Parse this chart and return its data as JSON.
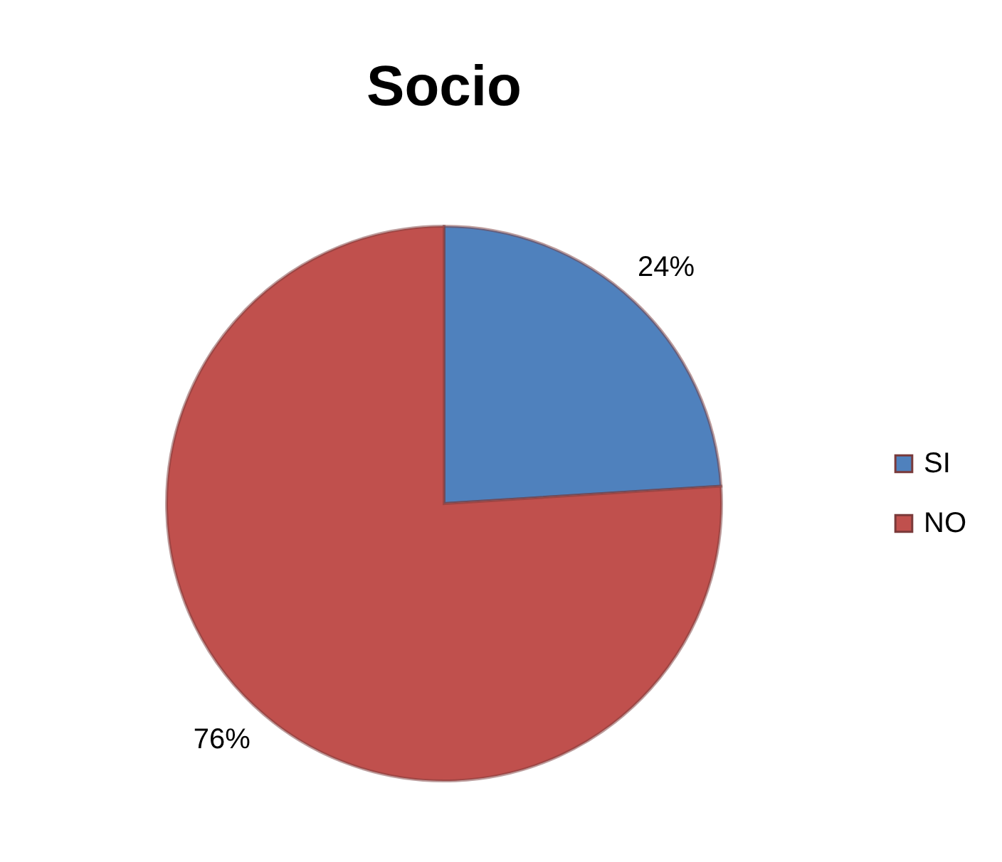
{
  "chart_data": {
    "type": "pie",
    "title": "Socio",
    "categories": [
      "SI",
      "NO"
    ],
    "values": [
      24,
      76
    ],
    "colors": [
      "#4f81bd",
      "#c0504d"
    ],
    "value_labels": [
      "24%",
      "76%"
    ],
    "legend": "right"
  }
}
